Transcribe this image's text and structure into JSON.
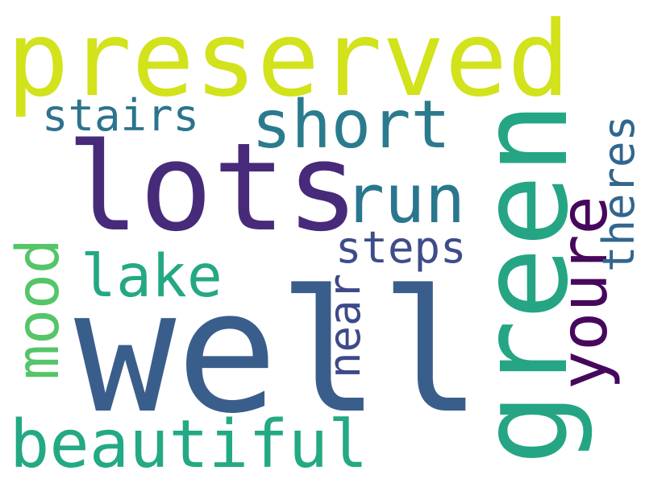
{
  "words": {
    "preserved": {
      "text": "preserved",
      "color": "#d2e21b"
    },
    "well": {
      "text": "well",
      "color": "#3a5e8c"
    },
    "lots": {
      "text": "lots",
      "color": "#472a7a"
    },
    "green": {
      "text": "green",
      "color": "#25a584"
    },
    "short": {
      "text": "short",
      "color": "#2b7b8e"
    },
    "run": {
      "text": "run",
      "color": "#2a768e"
    },
    "youre": {
      "text": "youre",
      "color": "#46085c"
    },
    "lake": {
      "text": "lake",
      "color": "#24a884"
    },
    "beautiful": {
      "text": "beautiful",
      "color": "#23a983"
    },
    "mood": {
      "text": "mood",
      "color": "#54c568"
    },
    "stairs": {
      "text": "stairs",
      "color": "#2c738e"
    },
    "steps": {
      "text": "steps",
      "color": "#3e4c8a"
    },
    "theres": {
      "text": "theres",
      "color": "#31668e"
    },
    "near": {
      "text": "near",
      "color": "#3e4989"
    }
  }
}
